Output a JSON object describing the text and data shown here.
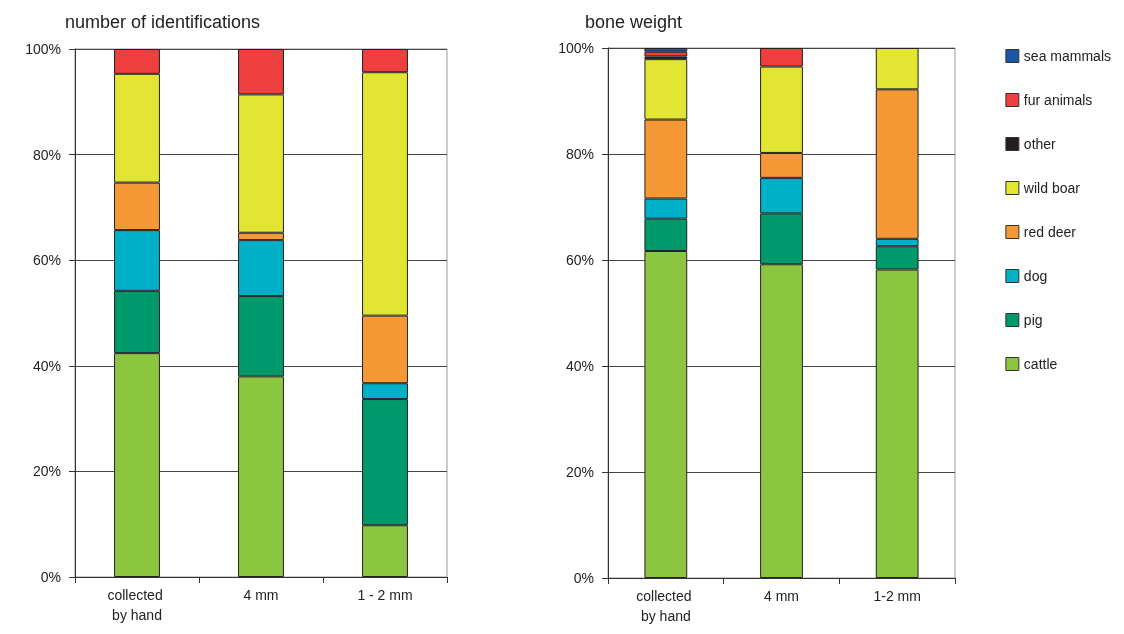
{
  "chart_data": [
    {
      "type": "bar",
      "title": "number of identifications",
      "stacked": true,
      "categories": [
        "collected by hand",
        "4 mm",
        "1 - 2 mm"
      ],
      "ylim": [
        0,
        100
      ],
      "yticks": [
        {
          "value": 0,
          "label": "0%"
        },
        {
          "value": 20,
          "label": "20%"
        },
        {
          "value": 40,
          "label": "40%"
        },
        {
          "value": 60,
          "label": "60%"
        },
        {
          "value": 80,
          "label": "80%"
        },
        {
          "value": 100,
          "label": "100%"
        }
      ],
      "grid": "y",
      "legend": false,
      "series": [
        {
          "color": "#8cc63f",
          "values": [
            42.4,
            38.0,
            9.8
          ]
        },
        {
          "color": "#00996b",
          "values": [
            11.8,
            15.2,
            23.9
          ]
        },
        {
          "color": "#00b0c8",
          "values": [
            11.5,
            10.6,
            3.0
          ]
        },
        {
          "color": "#f79836",
          "values": [
            9.0,
            1.4,
            12.8
          ]
        },
        {
          "color": "#e3e533",
          "values": [
            20.6,
            26.2,
            46.1
          ]
        },
        {
          "color": "#ef3e3e",
          "values": [
            4.7,
            8.6,
            4.4
          ]
        }
      ]
    },
    {
      "type": "bar",
      "title": "bone weight",
      "stacked": true,
      "categories": [
        "collected by hand",
        "4 mm",
        "1-2 mm"
      ],
      "ylim": [
        0,
        100
      ],
      "yticks": [
        {
          "value": 0,
          "label": "0%"
        },
        {
          "value": 20,
          "label": "20%"
        },
        {
          "value": 40,
          "label": "40%"
        },
        {
          "value": 60,
          "label": "60%"
        },
        {
          "value": 80,
          "label": "80%"
        },
        {
          "value": 100,
          "label": "100%"
        }
      ],
      "grid": "y",
      "legend": "right",
      "series": [
        {
          "name": "cattle",
          "color": "#8cc63f",
          "values": [
            61.7,
            59.2,
            58.2
          ]
        },
        {
          "name": "pig",
          "color": "#00996b",
          "values": [
            6.1,
            9.6,
            4.4
          ]
        },
        {
          "name": "dog",
          "color": "#00b0c8",
          "values": [
            3.8,
            6.7,
            1.4
          ]
        },
        {
          "name": "red deer",
          "color": "#f79836",
          "values": [
            14.9,
            4.7,
            28.2
          ]
        },
        {
          "name": "wild boar",
          "color": "#e3e533",
          "values": [
            11.4,
            16.3,
            7.8
          ]
        },
        {
          "name": "other",
          "color": "#231f20",
          "values": [
            0.5,
            null,
            null
          ]
        },
        {
          "name": "fur animals",
          "color": "#ef3e3e",
          "values": [
            0.9,
            3.5,
            null
          ]
        },
        {
          "name": "sea mammals",
          "color": "#1d56a6",
          "values": [
            0.7,
            null,
            null
          ]
        }
      ]
    }
  ]
}
